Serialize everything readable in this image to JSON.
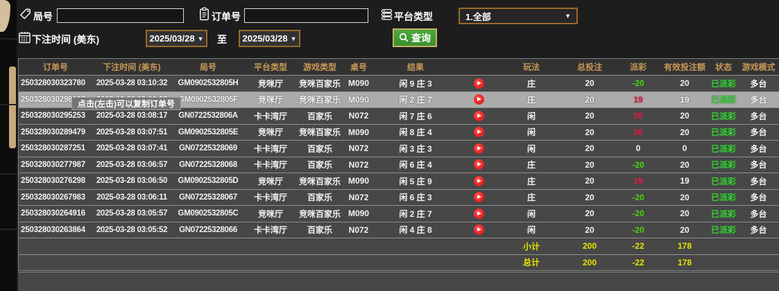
{
  "filters": {
    "game_no_label": "局号",
    "game_no_value": "",
    "order_no_label": "订单号",
    "order_no_value": "",
    "platform_type_label": "平台类型",
    "platform_type_value": "1.全部",
    "bet_time_label": "下注时间 (美东)",
    "date_from": "2025/03/28",
    "to_label": "至",
    "date_to": "2025/03/28",
    "query_label": "查询"
  },
  "tooltip": "点击(左击)可以复制订单号",
  "table": {
    "headers": [
      "订单号",
      "下注时间 (美东)",
      "局号",
      "平台类型",
      "游戏类型",
      "桌号",
      "结果",
      "玩法",
      "总投注",
      "派彩",
      "有效投注额",
      "状态",
      "游戏模式"
    ],
    "rows": [
      {
        "order_no": "250328030323780",
        "bet_time": "2025-03-28 03:10:32",
        "game_no": "GM0902532805H",
        "platform": "竞咪厅",
        "game_type": "竞咪百家乐",
        "table_no": "M090",
        "result": "闲 9 庄 3",
        "play": "庄",
        "total_bet": "20",
        "payout": "-20",
        "payout_color": "green",
        "valid_bet": "20",
        "status": "已派彩",
        "mode": "多台",
        "highlighted": false
      },
      {
        "order_no": "250328030298927",
        "bet_time": "2025-03-28 03:08:33",
        "game_no": "GM0902532805F",
        "platform": "竞咪厅",
        "game_type": "竞咪百家乐",
        "table_no": "M090",
        "result": "闲 2 庄 7",
        "play": "庄",
        "total_bet": "20",
        "payout": "19",
        "payout_color": "red",
        "valid_bet": "19",
        "status": "已派彩",
        "mode": "多台",
        "highlighted": true
      },
      {
        "order_no": "250328030295253",
        "bet_time": "2025-03-28 03:08:17",
        "game_no": "GN0722532806A",
        "platform": "卡卡湾厅",
        "game_type": "百家乐",
        "table_no": "N072",
        "result": "闲 7 庄 6",
        "play": "闲",
        "total_bet": "20",
        "payout": "20",
        "payout_color": "red",
        "valid_bet": "20",
        "status": "已派彩",
        "mode": "多台",
        "highlighted": false
      },
      {
        "order_no": "250328030289479",
        "bet_time": "2025-03-28 03:07:51",
        "game_no": "GM0902532805E",
        "platform": "竞咪厅",
        "game_type": "竞咪百家乐",
        "table_no": "M090",
        "result": "闲 8 庄 4",
        "play": "闲",
        "total_bet": "20",
        "payout": "20",
        "payout_color": "red",
        "valid_bet": "20",
        "status": "已派彩",
        "mode": "多台",
        "highlighted": false
      },
      {
        "order_no": "250328030287251",
        "bet_time": "2025-03-28 03:07:41",
        "game_no": "GN07225328069",
        "platform": "卡卡湾厅",
        "game_type": "百家乐",
        "table_no": "N072",
        "result": "闲 3 庄 3",
        "play": "闲",
        "total_bet": "20",
        "payout": "0",
        "payout_color": "white",
        "valid_bet": "0",
        "status": "已派彩",
        "mode": "多台",
        "highlighted": false
      },
      {
        "order_no": "250328030277987",
        "bet_time": "2025-03-28 03:06:57",
        "game_no": "GN07225328068",
        "platform": "卡卡湾厅",
        "game_type": "百家乐",
        "table_no": "N072",
        "result": "闲 6 庄 4",
        "play": "庄",
        "total_bet": "20",
        "payout": "-20",
        "payout_color": "green",
        "valid_bet": "20",
        "status": "已派彩",
        "mode": "多台",
        "highlighted": false
      },
      {
        "order_no": "250328030276298",
        "bet_time": "2025-03-28 03:06:50",
        "game_no": "GM0902532805D",
        "platform": "竞咪厅",
        "game_type": "竞咪百家乐",
        "table_no": "M090",
        "result": "闲 5 庄 9",
        "play": "庄",
        "total_bet": "20",
        "payout": "19",
        "payout_color": "red",
        "valid_bet": "19",
        "status": "已派彩",
        "mode": "多台",
        "highlighted": false
      },
      {
        "order_no": "250328030267983",
        "bet_time": "2025-03-28 03:06:11",
        "game_no": "GN07225328067",
        "platform": "卡卡湾厅",
        "game_type": "百家乐",
        "table_no": "N072",
        "result": "闲 6 庄 3",
        "play": "庄",
        "total_bet": "20",
        "payout": "-20",
        "payout_color": "green",
        "valid_bet": "20",
        "status": "已派彩",
        "mode": "多台",
        "highlighted": false
      },
      {
        "order_no": "250328030264916",
        "bet_time": "2025-03-28 03:05:57",
        "game_no": "GM0902532805C",
        "platform": "竞咪厅",
        "game_type": "竞咪百家乐",
        "table_no": "M090",
        "result": "闲 2 庄 7",
        "play": "闲",
        "total_bet": "20",
        "payout": "-20",
        "payout_color": "green",
        "valid_bet": "20",
        "status": "已派彩",
        "mode": "多台",
        "highlighted": false
      },
      {
        "order_no": "250328030263864",
        "bet_time": "2025-03-28 03:05:52",
        "game_no": "GN07225328066",
        "platform": "卡卡湾厅",
        "game_type": "百家乐",
        "table_no": "N072",
        "result": "闲 4 庄 8",
        "play": "闲",
        "total_bet": "20",
        "payout": "-20",
        "payout_color": "green",
        "valid_bet": "20",
        "status": "已派彩",
        "mode": "多台",
        "highlighted": false
      }
    ],
    "subtotal": {
      "label": "小计",
      "total_bet": "200",
      "payout": "-22",
      "valid_bet": "178"
    },
    "total": {
      "label": "总计",
      "total_bet": "200",
      "payout": "-22",
      "valid_bet": "178"
    }
  },
  "colors": {
    "accent_border": "#9c6a28",
    "query_green": "#3f9f35",
    "header_gold": "#c89858",
    "row_bg": "#474747",
    "row_highlight": "#ababab",
    "win_red": "#e8194a",
    "loss_green": "#4ad411",
    "status_green": "#2fd52f",
    "summary_yellow": "#e8e400"
  }
}
